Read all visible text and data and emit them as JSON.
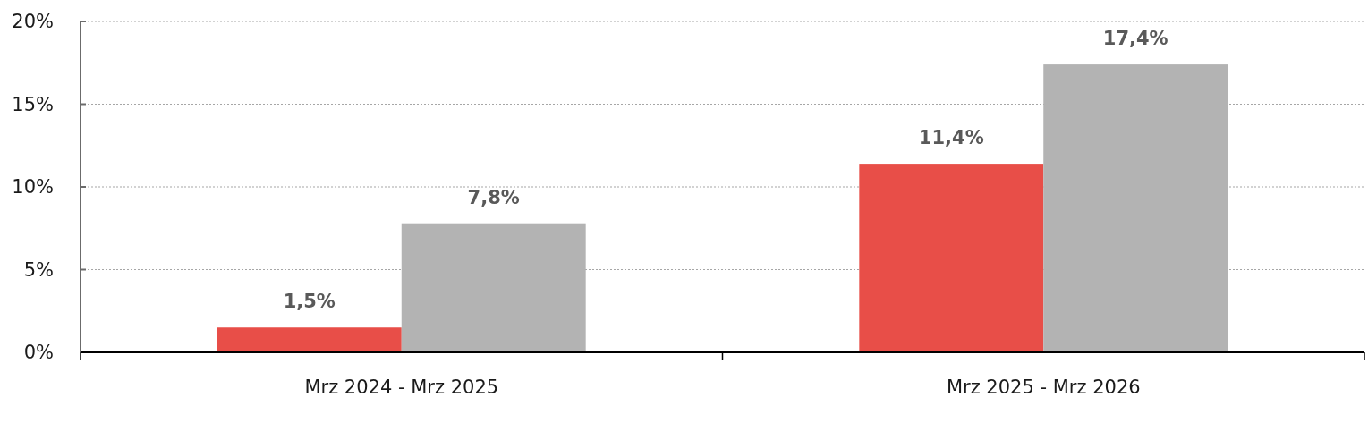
{
  "chart_data": {
    "type": "bar",
    "categories": [
      "Mrz 2024 - Mrz 2025",
      "Mrz 2025 - Mrz 2026"
    ],
    "series": [
      {
        "color": "#e84e48",
        "values": [
          1.5,
          11.4
        ],
        "value_labels": [
          "1,5%",
          "11,4%"
        ]
      },
      {
        "color": "#b3b3b3",
        "values": [
          7.8,
          17.4
        ],
        "value_labels": [
          "7,8%",
          "17,4%"
        ]
      }
    ],
    "ylim": [
      0,
      20
    ],
    "yticks": [
      {
        "value": 0,
        "label": "0%"
      },
      {
        "value": 5,
        "label": "5%"
      },
      {
        "value": 10,
        "label": "10%"
      },
      {
        "value": 15,
        "label": "15%"
      },
      {
        "value": 20,
        "label": "20%"
      }
    ],
    "grid": "y"
  }
}
